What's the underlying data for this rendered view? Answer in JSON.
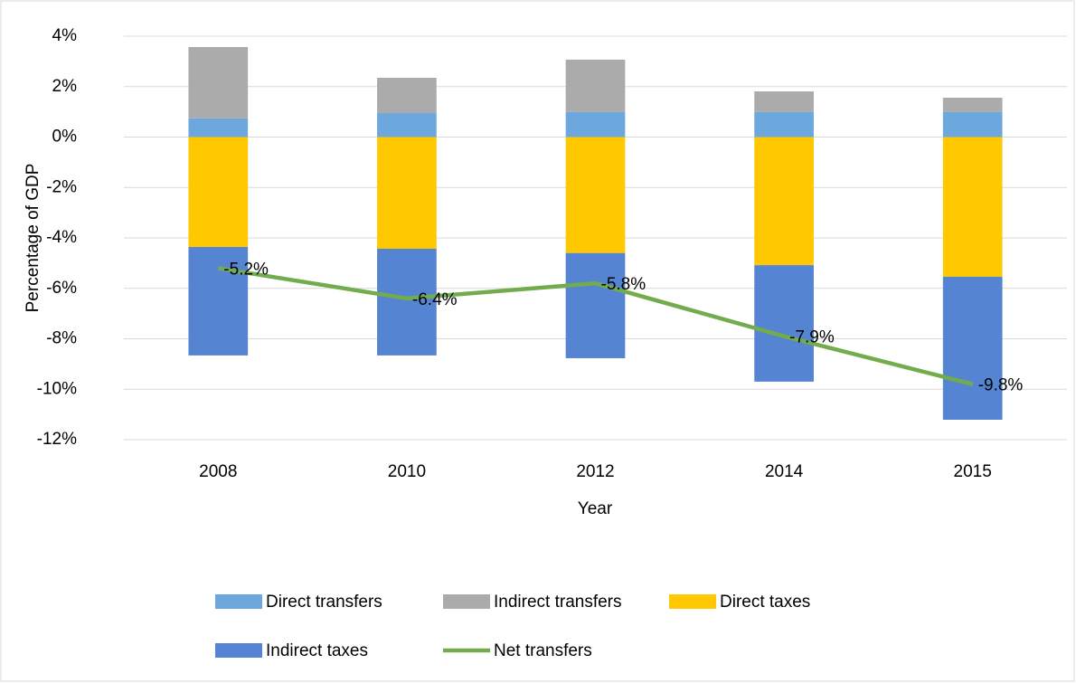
{
  "chart_data": {
    "type": "bar",
    "stacked": true,
    "x_label": "Year",
    "y_label": "Percentage of GDP",
    "categories": [
      "2008",
      "2010",
      "2012",
      "2014",
      "2015"
    ],
    "series": [
      {
        "name": "Direct transfers",
        "color": "#6CA8DE",
        "values": [
          0.74,
          0.95,
          0.99,
          0.99,
          0.99
        ]
      },
      {
        "name": "Indirect transfers",
        "color": "#ABABAB",
        "values": [
          2.83,
          1.4,
          2.08,
          0.82,
          0.57
        ]
      },
      {
        "name": "Direct taxes",
        "color": "#FFC800",
        "values": [
          -4.36,
          -4.43,
          -4.6,
          -5.08,
          -5.54
        ]
      },
      {
        "name": "Indirect taxes",
        "color": "#5585D2",
        "values": [
          -4.3,
          -4.23,
          -4.17,
          -4.62,
          -5.67
        ]
      },
      {
        "name": "Net transfers",
        "type": "line",
        "color": "#72AC4D",
        "values": [
          -5.2,
          -6.4,
          -5.8,
          -7.9,
          -9.8
        ],
        "value_labels": [
          "-5.2%",
          "-6.4%",
          "-5.8%",
          "-7.9%",
          "-9.8%"
        ]
      }
    ],
    "ylim": [
      -12,
      4
    ],
    "yticks": [
      {
        "value": -12,
        "label": "-12%"
      },
      {
        "value": -10,
        "label": "-10%"
      },
      {
        "value": -8,
        "label": "-8%"
      },
      {
        "value": -6,
        "label": "-6%"
      },
      {
        "value": -4,
        "label": "-4%"
      },
      {
        "value": -2,
        "label": "-2%"
      },
      {
        "value": 0,
        "label": "0%"
      },
      {
        "value": 2,
        "label": "2%"
      },
      {
        "value": 4,
        "label": "4%"
      }
    ],
    "grid": true,
    "legend": "bottom"
  }
}
